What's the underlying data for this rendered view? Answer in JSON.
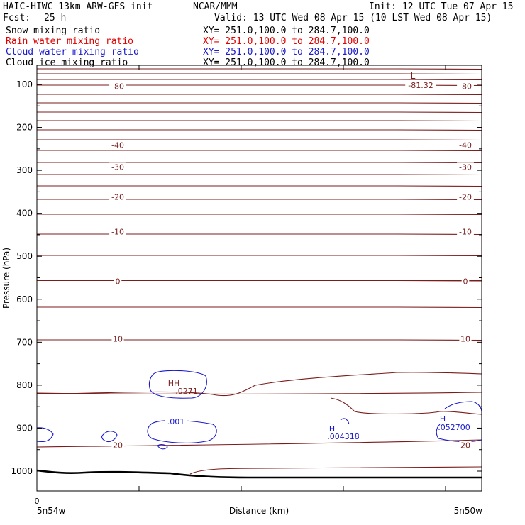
{
  "header": {
    "model_title": "HAIC-HIWC 13km ARW-GFS init",
    "org": "NCAR/MMM",
    "init": "Init: 12 UTC Tue 07 Apr 15",
    "fcst_label": "Fcst:",
    "fcst_value": "25 h",
    "valid": "Valid: 13 UTC Wed 08 Apr 15 (10 LST Wed 08 Apr 15)"
  },
  "fields": [
    {
      "name": "Snow mixing ratio",
      "xy": "XY= 251.0,100.0 to 284.7,100.0",
      "color": "#000000"
    },
    {
      "name": "Rain water mixing ratio",
      "xy": "XY= 251.0,100.0 to 284.7,100.0",
      "color": "#e00000"
    },
    {
      "name": "Cloud water mixing ratio",
      "xy": "XY= 251.0,100.0 to 284.7,100.0",
      "color": "#1a1acc"
    },
    {
      "name": "Cloud ice mixing ratio",
      "xy": "XY= 251.0,100.0 to 284.7,100.0",
      "color": "#000000"
    }
  ],
  "chart_data": {
    "type": "contour",
    "ylabel": "Pressure (hPa)",
    "xlabel": "Distance (km)",
    "x_start_label": "5n54w",
    "x_end_label": "5n50w",
    "x_tick_first": "0",
    "ylim": [
      1050,
      70
    ],
    "ytick_labels": [
      "100",
      "200",
      "300",
      "400",
      "500",
      "600",
      "700",
      "800",
      "900",
      "1000"
    ],
    "colors": {
      "temperature": "#7a1c1c",
      "cloud_water": "#1a1acc",
      "terrain": "#000000"
    },
    "temperature_contour_labels": [
      {
        "text": "-80",
        "p": 104
      },
      {
        "text": "-40",
        "p": 241
      },
      {
        "text": "-30",
        "p": 292
      },
      {
        "text": "-20",
        "p": 362
      },
      {
        "text": "-10",
        "p": 443
      },
      {
        "text": "0",
        "p": 558
      },
      {
        "text": "10",
        "p": 692
      },
      {
        "text": "20",
        "p": 940
      }
    ],
    "extrema_labels": [
      {
        "marker": "L",
        "value": "-81.32"
      },
      {
        "marker": "H",
        "value": ".004318"
      },
      {
        "marker": "H",
        "value": ".052700"
      },
      {
        "marker": "",
        "value": ".001"
      },
      {
        "marker": "HH",
        "value": ".0271"
      }
    ]
  }
}
